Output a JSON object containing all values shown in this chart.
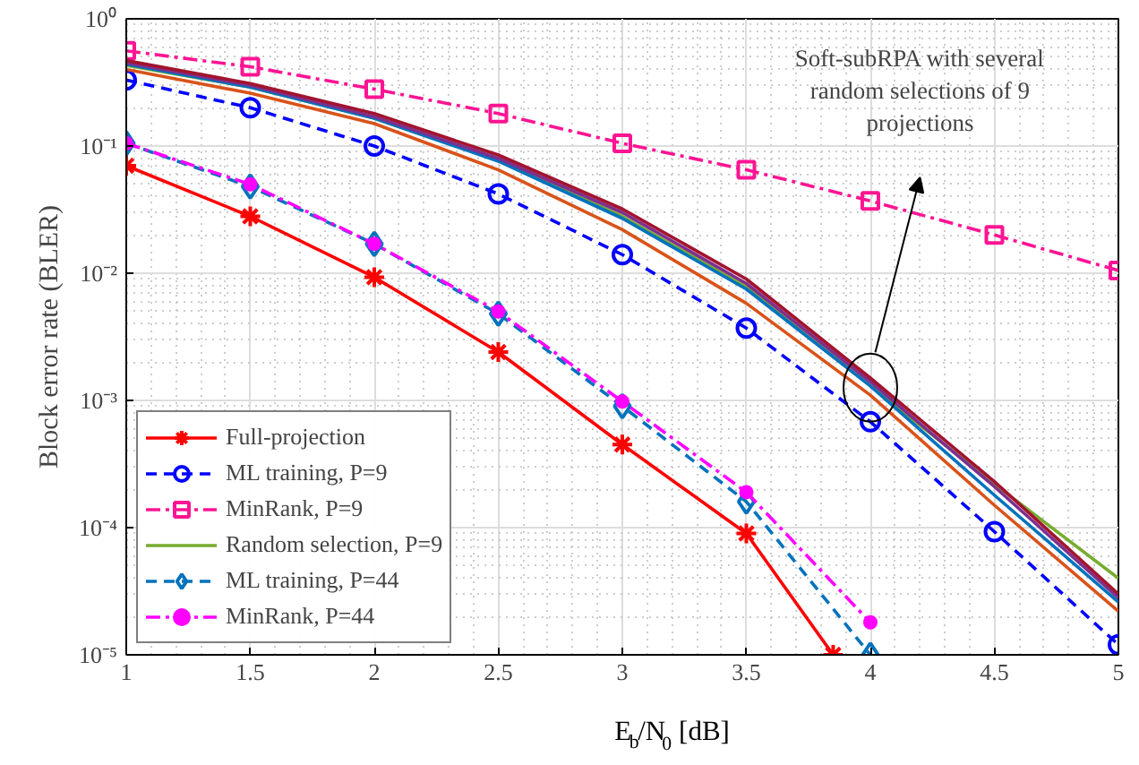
{
  "chart_data": {
    "type": "line",
    "xlabel": "E$_{b}$/N$_{0}$ [dB]",
    "ylabel": "Block error rate (BLER)",
    "log": "y",
    "grid": true,
    "legend": "bottom left",
    "xlim": [
      1,
      5
    ],
    "ylim": [
      1e-05,
      1
    ],
    "xticks": [
      1,
      1.5,
      2,
      2.5,
      3,
      3.5,
      4,
      4.5,
      5
    ],
    "yticks": [
      {
        "value": 1e-05,
        "label": "10⁻⁵"
      },
      {
        "value": 0.0001,
        "label": "10⁻⁴"
      },
      {
        "value": 0.001,
        "label": "10⁻³"
      },
      {
        "value": 0.01,
        "label": "10⁻²"
      },
      {
        "value": 0.1,
        "label": "10⁻¹"
      },
      {
        "value": 1,
        "label": "10⁰"
      }
    ],
    "x": [
      1,
      1.5,
      2,
      2.5,
      3,
      3.5,
      4,
      4.5,
      5
    ],
    "annotations": [
      "Soft-subRPA with several random selections of 9 projections"
    ],
    "series": [
      {
        "name": "Full-projection",
        "color": "#ff0000",
        "marker": "cross",
        "line_style": "solid",
        "x": [
          1,
          1.5,
          2,
          2.5,
          3,
          3.5,
          3.85
        ],
        "values": [
          0.07,
          0.028,
          0.0093,
          0.0024,
          0.00045,
          9e-05,
          1e-05
        ]
      },
      {
        "name": "ML training, P=9",
        "color": "#0000ff",
        "marker": "circle",
        "line_style": "dashed",
        "values": [
          0.33,
          0.2,
          0.1,
          0.042,
          0.014,
          0.0037,
          0.00068,
          9.3e-05,
          1.2e-05
        ]
      },
      {
        "name": "MinRank, P=9",
        "color": "#ff1493",
        "marker": "square",
        "line_style": "dashdot",
        "values": [
          0.56,
          0.42,
          0.28,
          0.18,
          0.105,
          0.065,
          0.037,
          0.02,
          0.0105
        ]
      },
      {
        "color": "#d95319",
        "marker": "none",
        "line_style": "solid",
        "values": [
          0.4,
          0.26,
          0.15,
          0.065,
          0.022,
          0.0058,
          0.0011,
          0.00015,
          2.2e-05
        ]
      },
      {
        "name": "Random selection, P=9",
        "color": "#77ac30",
        "marker": "none",
        "line_style": "solid",
        "values": [
          0.43,
          0.29,
          0.165,
          0.077,
          0.028,
          0.0078,
          0.0013,
          0.00022,
          4e-05
        ]
      },
      {
        "color": "#0072bd",
        "marker": "none",
        "line_style": "solid",
        "values": [
          0.44,
          0.29,
          0.165,
          0.076,
          0.027,
          0.0075,
          0.0013,
          0.00018,
          2.6e-05
        ]
      },
      {
        "color": "#7e2f8e",
        "marker": "none",
        "line_style": "solid",
        "values": [
          0.45,
          0.3,
          0.17,
          0.08,
          0.03,
          0.0083,
          0.0014,
          0.00021,
          2.8e-05
        ]
      },
      {
        "color": "#a2142f",
        "marker": "none",
        "line_style": "solid",
        "values": [
          0.47,
          0.31,
          0.18,
          0.085,
          0.032,
          0.009,
          0.0015,
          0.00023,
          3e-05
        ]
      },
      {
        "name": "ML training, P=44",
        "color": "#0072bd",
        "marker": "diamond",
        "line_style": "dashed",
        "x": [
          1,
          1.5,
          2,
          2.5,
          3,
          3.5,
          4
        ],
        "values": [
          0.105,
          0.048,
          0.017,
          0.0048,
          0.0009,
          0.00016,
          1e-05
        ]
      },
      {
        "name": "MinRank, P=44",
        "color": "#ff00ff",
        "marker": "dot",
        "line_style": "dashdot",
        "x": [
          1,
          1.5,
          2,
          2.5,
          3,
          3.5,
          4
        ],
        "values": [
          0.105,
          0.05,
          0.017,
          0.005,
          0.00098,
          0.00019,
          1.8e-05
        ]
      }
    ]
  }
}
